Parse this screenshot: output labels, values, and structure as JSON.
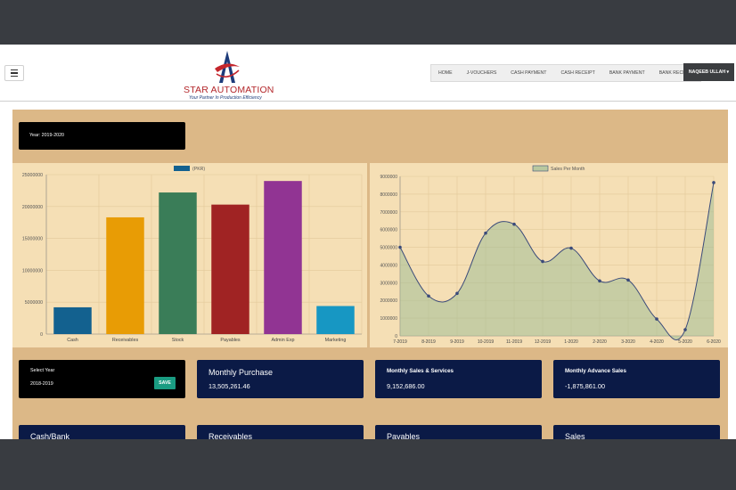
{
  "navbar": {
    "logo_title": "STAR AUTOMATION",
    "logo_tagline": "Your Partner In Production Efficiency",
    "menu": [
      "HOME",
      "J-VOUCHERS",
      "CASH PAYMENT",
      "CASH RECEIPT",
      "BANK PAYMENT",
      "BANK RECEIPT"
    ],
    "user": "NAQEEB ULLAH"
  },
  "year_label": "Year: 2019-2020",
  "select_year": {
    "label": "Select Year",
    "value": "2018-2019",
    "save": "SAVE"
  },
  "monthly_purchase": {
    "title": "Monthly Purchase",
    "value": "13,505,261.46"
  },
  "monthly_sales": {
    "title": "Monthly Sales & Services",
    "value": "9,152,686.00"
  },
  "monthly_advance": {
    "title": "Monthly Advance Sales",
    "value": "-1,875,861.00"
  },
  "bottom_cards": [
    "Cash/Bank",
    "Receivables",
    "Payables",
    "Sales"
  ],
  "colors": {
    "accent": "#0b1a46",
    "save": "#1a9c82",
    "panel": "#dcb887",
    "chart_bg": "#f5dfb5"
  },
  "chart_data": [
    {
      "type": "bar",
      "legend": "(PKR)",
      "categories": [
        "Cash",
        "Receivables",
        "Stock",
        "Payables",
        "Admin Exp",
        "Marketing"
      ],
      "values": [
        4200000,
        18300000,
        22200000,
        20300000,
        24000000,
        4400000
      ],
      "colors": [
        "#13618f",
        "#e89c05",
        "#3a7d58",
        "#a02323",
        "#913493",
        "#1797c3"
      ],
      "ylim": [
        0,
        25000000
      ],
      "yticks": [
        "0",
        "5000000",
        "10000000",
        "15000000",
        "20000000",
        "25000000"
      ]
    },
    {
      "type": "area",
      "legend": "Sales Per Month",
      "categories": [
        "7-2019",
        "8-2019",
        "9-2019",
        "10-2019",
        "11-2019",
        "12-2019",
        "1-2020",
        "2-2020",
        "3-2020",
        "4-2020",
        "5-2020",
        "6-2020"
      ],
      "values": [
        5000000,
        2250000,
        2400000,
        5800000,
        6300000,
        4200000,
        4950000,
        3100000,
        3150000,
        950000,
        350000,
        8650000
      ],
      "ylim": [
        0,
        9000000
      ],
      "yticks": [
        "0",
        "1000000",
        "2000000",
        "3000000",
        "4000000",
        "5000000",
        "6000000",
        "7000000",
        "8000000",
        "9000000"
      ]
    }
  ]
}
